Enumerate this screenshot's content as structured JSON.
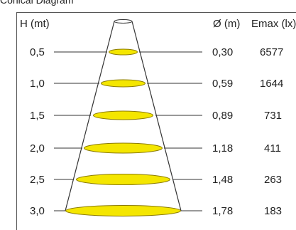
{
  "page_title": "Conical Diagram",
  "headers": {
    "height": "H (mt)",
    "diameter": "Ø (m)",
    "emax": "Emax (lx)"
  },
  "rows": [
    {
      "height": "0,5",
      "diameter": "0,30",
      "emax": "6577"
    },
    {
      "height": "1,0",
      "diameter": "0,59",
      "emax": "1644"
    },
    {
      "height": "1,5",
      "diameter": "0,89",
      "emax": "731"
    },
    {
      "height": "2,0",
      "diameter": "1,18",
      "emax": "411"
    },
    {
      "height": "2,5",
      "diameter": "1,48",
      "emax": "263"
    },
    {
      "height": "3,0",
      "diameter": "1,78",
      "emax": "183"
    }
  ],
  "colors": {
    "ellipse_fill": "#f4e600",
    "ellipse_stroke": "#8a7a00",
    "line": "#333333",
    "frame": "#555555"
  }
}
